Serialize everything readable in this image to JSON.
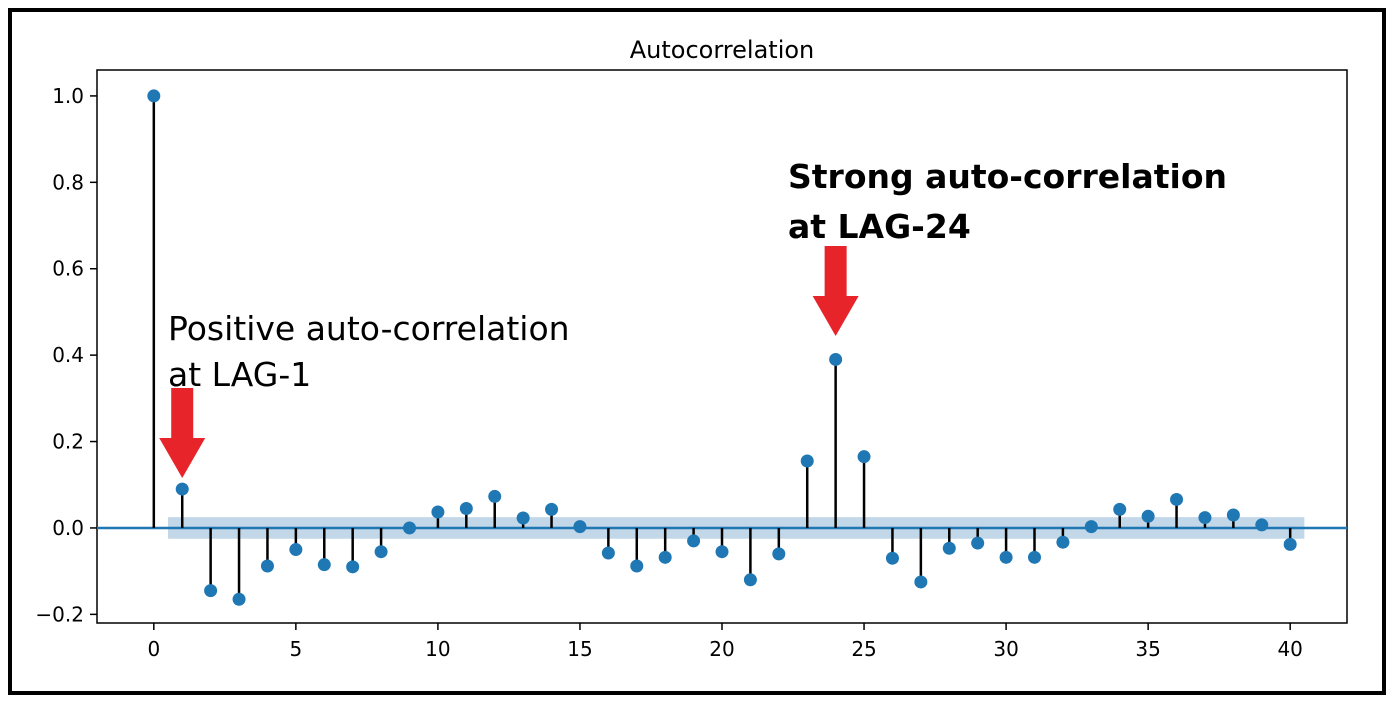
{
  "chart_data": {
    "type": "stem",
    "title": "Autocorrelation",
    "xlabel": "",
    "ylabel": "",
    "xlim": [
      -2,
      42
    ],
    "ylim": [
      -0.22,
      1.06
    ],
    "xticks": [
      0,
      5,
      10,
      15,
      20,
      25,
      30,
      35,
      40
    ],
    "xtick_labels": [
      "0",
      "5",
      "10",
      "15",
      "20",
      "25",
      "30",
      "35",
      "40"
    ],
    "yticks": [
      -0.2,
      0.0,
      0.2,
      0.4,
      0.6,
      0.8,
      1.0
    ],
    "ytick_labels": [
      "−0.2",
      "0.0",
      "0.2",
      "0.4",
      "0.6",
      "0.8",
      "1.0"
    ],
    "grid": false,
    "series": [
      {
        "x": [
          0,
          1,
          2,
          3,
          4,
          5,
          6,
          7,
          8,
          9,
          10,
          11,
          12,
          13,
          14,
          15,
          16,
          17,
          18,
          19,
          20,
          21,
          22,
          23,
          24,
          25,
          26,
          27,
          28,
          29,
          30,
          31,
          32,
          33,
          34,
          35,
          36,
          37,
          38,
          39,
          40
        ],
        "values": [
          1.0,
          0.09,
          -0.145,
          -0.165,
          -0.088,
          -0.05,
          -0.085,
          -0.09,
          -0.055,
          0.0,
          0.037,
          0.045,
          0.073,
          0.023,
          0.043,
          0.003,
          -0.058,
          -0.088,
          -0.068,
          -0.03,
          -0.055,
          -0.12,
          -0.06,
          0.155,
          0.39,
          0.165,
          -0.07,
          -0.125,
          -0.047,
          -0.035,
          -0.068,
          -0.068,
          -0.033,
          0.003,
          0.043,
          0.027,
          0.066,
          0.024,
          0.03,
          0.007,
          -0.038
        ]
      }
    ],
    "confidence_band": {
      "x": [
        0.5,
        40.5
      ],
      "upper": [
        0.025,
        0.025
      ],
      "lower": [
        -0.025,
        -0.025
      ]
    },
    "annotations": [
      {
        "text": "Positive auto-correlation\nat LAG-1",
        "target_lag": 1
      },
      {
        "text": "Strong auto-correlation\nat LAG-24",
        "target_lag": 24
      }
    ],
    "colors": {
      "marker": "#1f77b4",
      "stem": "#000000",
      "baseline": "#1f77b4",
      "band": "#adc9e0",
      "arrow": "#e8242b"
    }
  }
}
